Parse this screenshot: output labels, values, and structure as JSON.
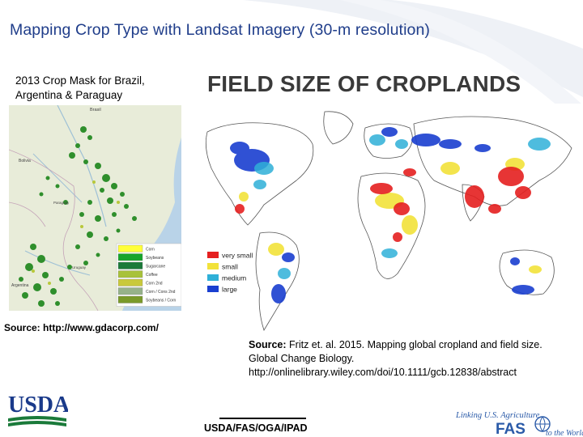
{
  "slide": {
    "title": "Mapping Crop Type with Landsat Imagery (30-m resolution)",
    "footer": "USDA/FAS/OGA/IPAD"
  },
  "left_panel": {
    "caption_line1": "2013 Crop Mask for Brazil,",
    "caption_line2": "Argentina & Paraguay",
    "map_labels": {
      "brazil": "Brasil",
      "bolivia": "Bolivia",
      "paraguay": "Paraguay",
      "uruguay": "Uruguay",
      "argentina": "Argentina"
    },
    "legend": [
      {
        "label": "Corn",
        "color": "#ffff3a"
      },
      {
        "label": "Soybeans",
        "color": "#17a52b"
      },
      {
        "label": "Sugarcane",
        "color": "#1b7a3a"
      },
      {
        "label": "Coffee",
        "color": "#a8c23a"
      },
      {
        "label": "Corn 2nd",
        "color": "#c9c93b"
      },
      {
        "label": "Corn / Cons 2nd",
        "color": "#96b28a"
      },
      {
        "label": "Soybeans / Corn",
        "color": "#7a9a2a"
      }
    ],
    "source": "Source: http://www.gdacorp.com/"
  },
  "right_panel": {
    "title": "FIELD SIZE OF CROPLANDS",
    "legend": [
      {
        "label": "very small",
        "color": "#e52020"
      },
      {
        "label": "small",
        "color": "#f2e23a"
      },
      {
        "label": "medium",
        "color": "#2fb0d8"
      },
      {
        "label": "large",
        "color": "#1a3fd0"
      }
    ],
    "source_bold": "Source:",
    "source_rest": " Fritz et. al. 2015. Mapping global cropland and field size.",
    "source_line2": "Global Change Biology.",
    "source_line3": "http://onlinelibrary.wiley.com/doi/10.1111/gcb.12838/abstract"
  },
  "logos": {
    "usda": "USDA",
    "fas_line1": "Linking U.S. Agriculture",
    "fas_mark": "FAS",
    "fas_line2": "to the World"
  },
  "colors": {
    "title": "#1f3d8a",
    "usda_green": "#1a7a3a",
    "usda_blue": "#1a3a8a",
    "fas_blue": "#2a5aa8"
  }
}
